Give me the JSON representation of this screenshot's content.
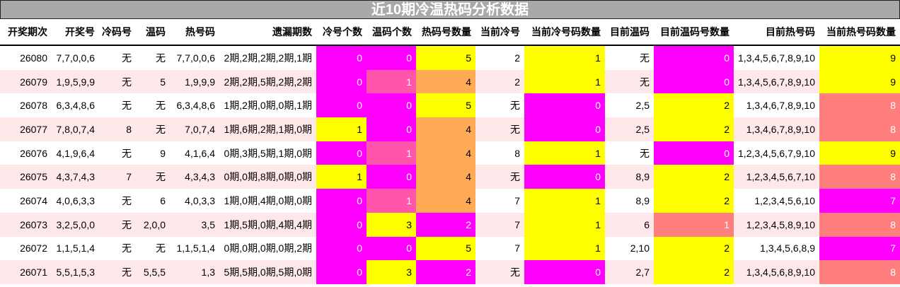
{
  "title": "近10期冷温热码分析数据",
  "headers": [
    "开奖期次",
    "开奖号",
    "冷码号",
    "温码",
    "热号码",
    "遗漏期数",
    "冷号个数",
    "温码个数",
    "热码号数量",
    "当前冷号",
    "当前冷号码数量",
    "目前温码",
    "目前温码号数量",
    "目前热号码",
    "当前热号码数量"
  ],
  "colors": {
    "magenta": "#ff00ff",
    "pink": "#ff55aa",
    "orange": "#ffaa55",
    "yellow": "#ffff00",
    "salmon": "#ff7f7f"
  },
  "rows": [
    {
      "cells": [
        "26080",
        "7,7,0,0,6",
        "无",
        "无",
        "7,7,0,0,6",
        "2期,2期,2期,2期,1期",
        "0",
        "0",
        "5",
        "2",
        "1",
        "无",
        "0",
        "1,3,4,5,6,7,8,9,10",
        "9"
      ],
      "fills": {
        "6": "magenta",
        "7": "magenta",
        "8": "yellow",
        "10": "yellow",
        "12": "magenta",
        "14": "yellow"
      }
    },
    {
      "cells": [
        "26079",
        "1,9,5,9,9",
        "无",
        "5",
        "1,9,9,9",
        "2期,2期,5期,2期,2期",
        "0",
        "1",
        "4",
        "2",
        "1",
        "无",
        "0",
        "1,3,4,5,6,7,8,9,10",
        "9"
      ],
      "fills": {
        "6": "magenta",
        "7": "pink",
        "8": "orange",
        "10": "yellow",
        "12": "magenta",
        "14": "yellow"
      }
    },
    {
      "cells": [
        "26078",
        "6,3,4,8,6",
        "无",
        "无",
        "6,3,4,8,6",
        "1期,2期,0期,0期,1期",
        "0",
        "0",
        "5",
        "无",
        "0",
        "2,5",
        "2",
        "1,3,4,6,7,8,9,10",
        "8"
      ],
      "fills": {
        "6": "magenta",
        "7": "magenta",
        "8": "yellow",
        "10": "magenta",
        "12": "yellow",
        "14": "salmon"
      }
    },
    {
      "cells": [
        "26077",
        "7,8,0,7,4",
        "8",
        "无",
        "7,0,7,4",
        "1期,6期,2期,1期,0期",
        "1",
        "0",
        "4",
        "无",
        "0",
        "2,5",
        "2",
        "1,3,4,6,7,8,9,10",
        "8"
      ],
      "fills": {
        "6": "yellow",
        "7": "magenta",
        "8": "orange",
        "10": "magenta",
        "12": "yellow",
        "14": "salmon"
      }
    },
    {
      "cells": [
        "26076",
        "4,1,9,6,4",
        "无",
        "9",
        "4,1,6,4",
        "0期,3期,5期,1期,0期",
        "0",
        "1",
        "4",
        "8",
        "1",
        "无",
        "0",
        "1,2,3,4,5,6,7,9,10",
        "9"
      ],
      "fills": {
        "6": "magenta",
        "7": "pink",
        "8": "orange",
        "10": "yellow",
        "12": "magenta",
        "14": "yellow"
      }
    },
    {
      "cells": [
        "26075",
        "4,3,7,4,3",
        "7",
        "无",
        "4,3,4,3",
        "0期,0期,8期,0期,0期",
        "1",
        "0",
        "4",
        "无",
        "0",
        "8,9",
        "2",
        "1,2,3,4,5,6,7,10",
        "8"
      ],
      "fills": {
        "6": "yellow",
        "7": "magenta",
        "8": "orange",
        "10": "magenta",
        "12": "yellow",
        "14": "salmon"
      }
    },
    {
      "cells": [
        "26074",
        "4,0,6,3,3",
        "无",
        "6",
        "4,0,3,3",
        "1期,0期,4期,0期,0期",
        "0",
        "1",
        "4",
        "7",
        "1",
        "8,9",
        "2",
        "1,2,3,4,5,6,10",
        "7"
      ],
      "fills": {
        "6": "magenta",
        "7": "pink",
        "8": "orange",
        "10": "yellow",
        "12": "yellow",
        "14": "magenta"
      }
    },
    {
      "cells": [
        "26073",
        "3,2,5,0,0",
        "无",
        "2,0,0",
        "3,5",
        "1期,5期,0期,4期,4期",
        "0",
        "3",
        "2",
        "7",
        "1",
        "6",
        "1",
        "1,2,3,4,5,8,9,10",
        "8"
      ],
      "fills": {
        "6": "magenta",
        "7": "yellow",
        "8": "magenta",
        "10": "yellow",
        "12": "salmon",
        "14": "salmon"
      }
    },
    {
      "cells": [
        "26072",
        "1,1,5,1,4",
        "无",
        "无",
        "1,1,5,1,4",
        "0期,0期,0期,0期,2期",
        "0",
        "0",
        "5",
        "7",
        "1",
        "2,10",
        "2",
        "1,3,4,5,6,8,9",
        "7"
      ],
      "fills": {
        "6": "magenta",
        "7": "magenta",
        "8": "yellow",
        "10": "yellow",
        "12": "yellow",
        "14": "magenta"
      }
    },
    {
      "cells": [
        "26071",
        "5,5,1,5,3",
        "无",
        "5,5,5",
        "1,3",
        "5期,5期,0期,5期,0期",
        "0",
        "3",
        "2",
        "无",
        "0",
        "2,7",
        "2",
        "1,3,4,5,6,8,9,10",
        "8"
      ],
      "fills": {
        "6": "magenta",
        "7": "yellow",
        "8": "magenta",
        "10": "magenta",
        "12": "yellow",
        "14": "salmon"
      }
    }
  ]
}
